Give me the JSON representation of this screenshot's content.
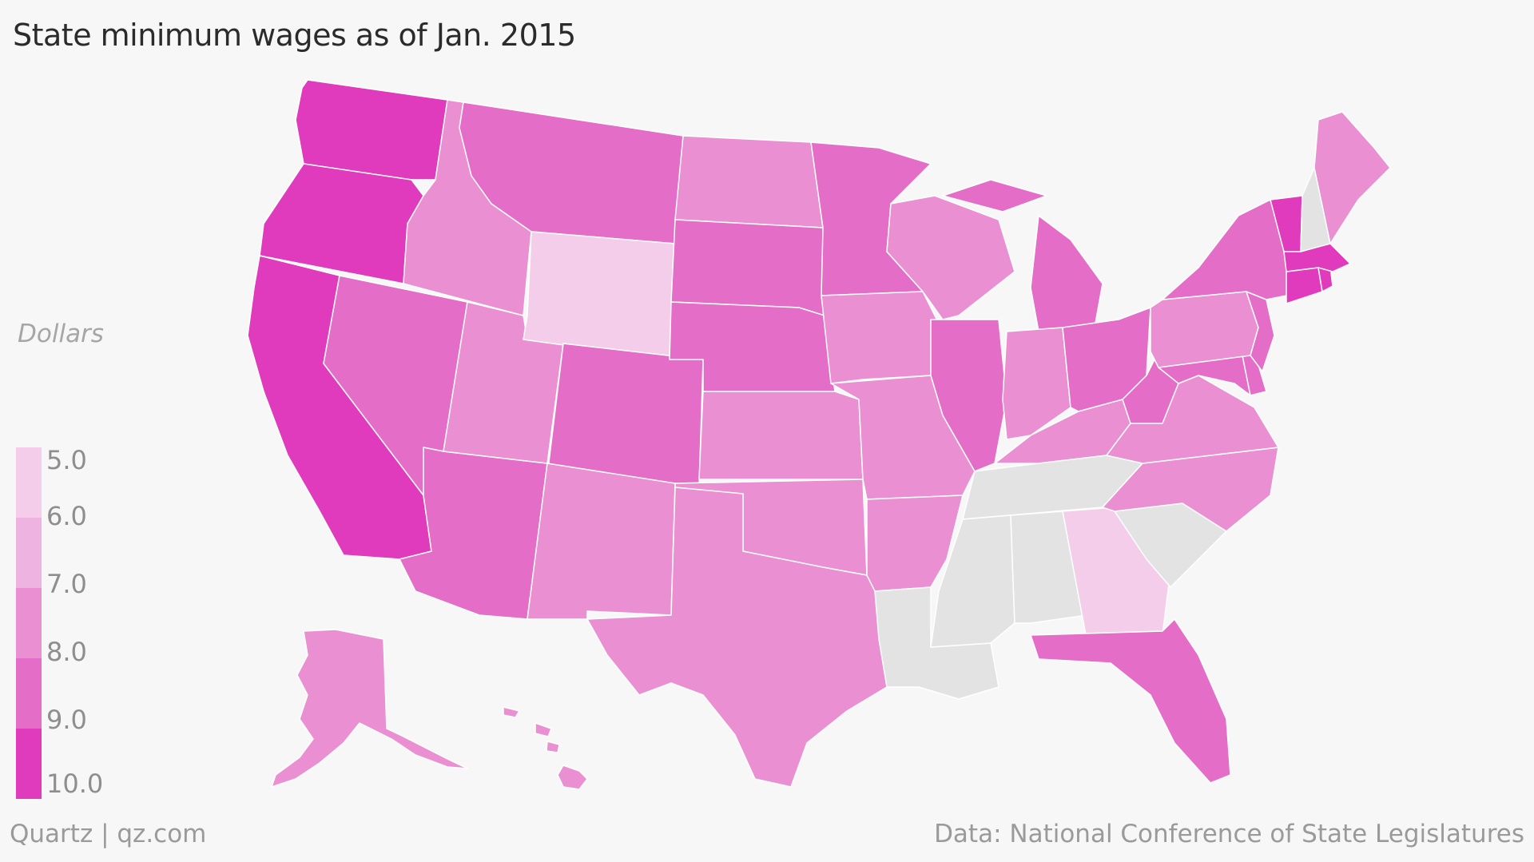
{
  "title": "State minimum wages as of Jan. 2015",
  "units_label": "Dollars",
  "footer": {
    "brand": "Quartz | qz.com",
    "source": "Data: National Conference of State Legislatures"
  },
  "legend": {
    "ticks": [
      "5.0",
      "6.0",
      "7.0",
      "8.0",
      "9.0",
      "10.0"
    ],
    "colors": [
      "#f3cdea",
      "#eeb3e0",
      "#e98fd2",
      "#e46dc8",
      "#df3bbc"
    ]
  },
  "colors": {
    "no_wage": "#e3e3e3",
    "c5": "#f3cdea",
    "c6": "#eeb3e0",
    "c7": "#e98fd2",
    "c8": "#e46dc8",
    "c9": "#df3bbc"
  },
  "chart_data": {
    "type": "choropleth",
    "title": "State minimum wages as of Jan. 2015",
    "ylabel": "Dollars",
    "scale_range": [
      5.0,
      10.0
    ],
    "scale_ticks": [
      5,
      6,
      7,
      8,
      9,
      10
    ],
    "no_data_color": "#e3e3e3",
    "states": [
      {
        "id": "WA",
        "band": "9-10"
      },
      {
        "id": "OR",
        "band": "9-10"
      },
      {
        "id": "CA",
        "band": "9-10"
      },
      {
        "id": "ID",
        "band": "7-8"
      },
      {
        "id": "NV",
        "band": "8-9"
      },
      {
        "id": "UT",
        "band": "7-8"
      },
      {
        "id": "AZ",
        "band": "8-9"
      },
      {
        "id": "MT",
        "band": "8-9"
      },
      {
        "id": "WY",
        "band": "5-6"
      },
      {
        "id": "CO",
        "band": "8-9"
      },
      {
        "id": "NM",
        "band": "7-8"
      },
      {
        "id": "ND",
        "band": "7-8"
      },
      {
        "id": "SD",
        "band": "8-9"
      },
      {
        "id": "NE",
        "band": "8-9"
      },
      {
        "id": "KS",
        "band": "7-8"
      },
      {
        "id": "OK",
        "band": "7-8"
      },
      {
        "id": "TX",
        "band": "7-8"
      },
      {
        "id": "MN",
        "band": "8-9"
      },
      {
        "id": "IA",
        "band": "7-8"
      },
      {
        "id": "MO",
        "band": "7-8"
      },
      {
        "id": "AR",
        "band": "7-8"
      },
      {
        "id": "LA",
        "band": "none"
      },
      {
        "id": "WI",
        "band": "7-8"
      },
      {
        "id": "IL",
        "band": "8-9"
      },
      {
        "id": "MI",
        "band": "8-9"
      },
      {
        "id": "IN",
        "band": "7-8"
      },
      {
        "id": "OH",
        "band": "8-9"
      },
      {
        "id": "KY",
        "band": "7-8"
      },
      {
        "id": "TN",
        "band": "none"
      },
      {
        "id": "MS",
        "band": "none"
      },
      {
        "id": "AL",
        "band": "none"
      },
      {
        "id": "GA",
        "band": "5-6"
      },
      {
        "id": "FL",
        "band": "8-9"
      },
      {
        "id": "SC",
        "band": "none"
      },
      {
        "id": "NC",
        "band": "7-8"
      },
      {
        "id": "VA",
        "band": "7-8"
      },
      {
        "id": "WV",
        "band": "8-9"
      },
      {
        "id": "MD",
        "band": "8-9"
      },
      {
        "id": "DE",
        "band": "8-9"
      },
      {
        "id": "PA",
        "band": "7-8"
      },
      {
        "id": "NJ",
        "band": "8-9"
      },
      {
        "id": "NY",
        "band": "8-9"
      },
      {
        "id": "CT",
        "band": "9-10"
      },
      {
        "id": "RI",
        "band": "9-10"
      },
      {
        "id": "MA",
        "band": "9-10"
      },
      {
        "id": "VT",
        "band": "9-10"
      },
      {
        "id": "NH",
        "band": "none"
      },
      {
        "id": "ME",
        "band": "7-8"
      },
      {
        "id": "AK",
        "band": "7-8"
      },
      {
        "id": "HI",
        "band": "7-8"
      }
    ]
  }
}
